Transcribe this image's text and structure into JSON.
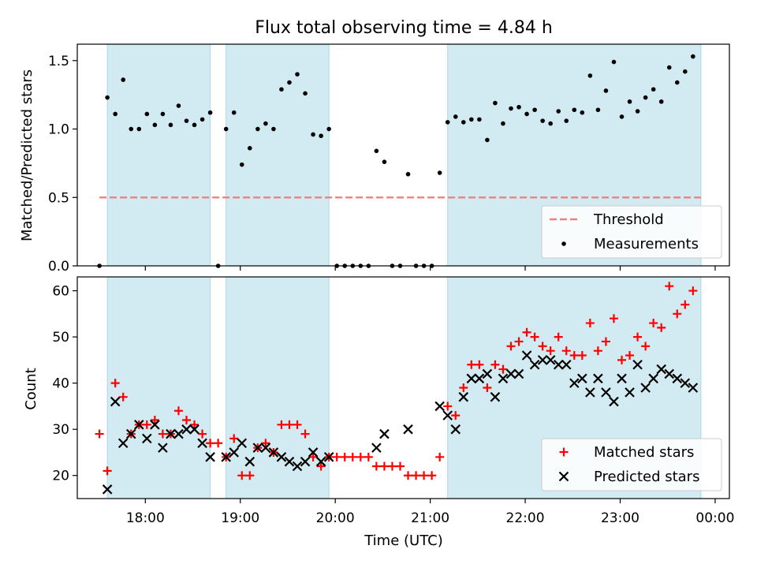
{
  "chart_data": [
    {
      "type": "scatter",
      "title": "Flux total observing time = 4.84 h",
      "ylabel": "Matched/Predicted stars",
      "xlabel": "",
      "xlim": [
        "17:17",
        "00:09"
      ],
      "ylim": [
        0,
        1.62
      ],
      "yticks": [
        0.0,
        0.5,
        1.0,
        1.5
      ],
      "ytick_labels": [
        "0.0",
        "0.5",
        "1.0",
        "1.5"
      ],
      "shaded_intervals": [
        [
          "17:36",
          "18:41"
        ],
        [
          "18:51",
          "19:56"
        ],
        [
          "21:11",
          "23:51"
        ]
      ],
      "threshold": {
        "name": "Threshold",
        "y": 0.5,
        "x_range": [
          "17:31",
          "23:51"
        ],
        "color": "#f08080"
      },
      "legend": {
        "placement": "lower-right",
        "entries": [
          "Threshold",
          "Measurements"
        ]
      },
      "series": [
        {
          "name": "Measurements",
          "color": "#000000",
          "marker": "dot",
          "points": [
            [
              "17:31",
              0
            ],
            [
              "17:36",
              1.23
            ],
            [
              "17:41",
              1.11
            ],
            [
              "17:46",
              1.36
            ],
            [
              "17:51",
              1.0
            ],
            [
              "17:56",
              1.0
            ],
            [
              "18:01",
              1.11
            ],
            [
              "18:06",
              1.03
            ],
            [
              "18:11",
              1.11
            ],
            [
              "18:16",
              1.03
            ],
            [
              "18:21",
              1.17
            ],
            [
              "18:26",
              1.06
            ],
            [
              "18:31",
              1.03
            ],
            [
              "18:36",
              1.07
            ],
            [
              "18:41",
              1.12
            ],
            [
              "18:46",
              0
            ],
            [
              "18:51",
              1.0
            ],
            [
              "18:56",
              1.12
            ],
            [
              "19:01",
              0.74
            ],
            [
              "19:06",
              0.86
            ],
            [
              "19:11",
              1.0
            ],
            [
              "19:16",
              1.04
            ],
            [
              "19:21",
              1.0
            ],
            [
              "19:26",
              1.29
            ],
            [
              "19:31",
              1.34
            ],
            [
              "19:36",
              1.4
            ],
            [
              "19:41",
              1.26
            ],
            [
              "19:46",
              0.96
            ],
            [
              "19:51",
              0.95
            ],
            [
              "19:56",
              1.0
            ],
            [
              "20:01",
              0
            ],
            [
              "20:06",
              0
            ],
            [
              "20:11",
              0
            ],
            [
              "20:16",
              0
            ],
            [
              "20:21",
              0
            ],
            [
              "20:26",
              0.84
            ],
            [
              "20:31",
              0.76
            ],
            [
              "20:36",
              0
            ],
            [
              "20:41",
              0
            ],
            [
              "20:46",
              0.67
            ],
            [
              "20:51",
              0
            ],
            [
              "20:56",
              0
            ],
            [
              "21:01",
              0
            ],
            [
              "21:06",
              0.68
            ],
            [
              "21:11",
              1.05
            ],
            [
              "21:16",
              1.09
            ],
            [
              "21:21",
              1.05
            ],
            [
              "21:26",
              1.07
            ],
            [
              "21:31",
              1.07
            ],
            [
              "21:36",
              0.92
            ],
            [
              "21:41",
              1.19
            ],
            [
              "21:46",
              1.04
            ],
            [
              "21:51",
              1.15
            ],
            [
              "21:56",
              1.16
            ],
            [
              "22:01",
              1.11
            ],
            [
              "22:06",
              1.14
            ],
            [
              "22:11",
              1.06
            ],
            [
              "22:16",
              1.04
            ],
            [
              "22:21",
              1.13
            ],
            [
              "22:26",
              1.06
            ],
            [
              "22:31",
              1.14
            ],
            [
              "22:36",
              1.12
            ],
            [
              "22:41",
              1.39
            ],
            [
              "22:46",
              1.14
            ],
            [
              "22:51",
              1.28
            ],
            [
              "22:56",
              1.49
            ],
            [
              "23:01",
              1.09
            ],
            [
              "23:06",
              1.2
            ],
            [
              "23:11",
              1.13
            ],
            [
              "23:16",
              1.23
            ],
            [
              "23:21",
              1.29
            ],
            [
              "23:26",
              1.2
            ],
            [
              "23:31",
              1.45
            ],
            [
              "23:36",
              1.34
            ],
            [
              "23:41",
              1.42
            ],
            [
              "23:46",
              1.53
            ]
          ]
        }
      ]
    },
    {
      "type": "scatter",
      "title": "",
      "xlabel": "Time (UTC)",
      "ylabel": "Count",
      "xlim": [
        "17:17",
        "00:09"
      ],
      "ylim": [
        15,
        63
      ],
      "yticks": [
        20,
        30,
        40,
        50,
        60
      ],
      "ytick_labels": [
        "20",
        "30",
        "40",
        "50",
        "60"
      ],
      "xticks": [
        "18:00",
        "19:00",
        "20:00",
        "21:00",
        "22:00",
        "23:00",
        "00:00"
      ],
      "shaded_intervals": [
        [
          "17:36",
          "18:41"
        ],
        [
          "18:51",
          "19:56"
        ],
        [
          "21:11",
          "23:51"
        ]
      ],
      "legend": {
        "placement": "lower-right",
        "entries": [
          "Matched stars",
          "Predicted stars"
        ]
      },
      "series": [
        {
          "name": "Matched stars",
          "color": "#ff0000",
          "marker": "plus",
          "points": [
            [
              "17:31",
              29
            ],
            [
              "17:36",
              21
            ],
            [
              "17:41",
              40
            ],
            [
              "17:46",
              37
            ],
            [
              "17:51",
              29
            ],
            [
              "17:56",
              31
            ],
            [
              "18:01",
              31
            ],
            [
              "18:06",
              32
            ],
            [
              "18:11",
              29
            ],
            [
              "18:16",
              29
            ],
            [
              "18:21",
              34
            ],
            [
              "18:26",
              32
            ],
            [
              "18:31",
              31
            ],
            [
              "18:36",
              29
            ],
            [
              "18:41",
              27
            ],
            [
              "18:46",
              27
            ],
            [
              "18:51",
              24
            ],
            [
              "18:56",
              28
            ],
            [
              "19:01",
              20
            ],
            [
              "19:06",
              20
            ],
            [
              "19:11",
              26
            ],
            [
              "19:16",
              27
            ],
            [
              "19:21",
              25
            ],
            [
              "19:26",
              31
            ],
            [
              "19:31",
              31
            ],
            [
              "19:36",
              31
            ],
            [
              "19:41",
              29
            ],
            [
              "19:46",
              24
            ],
            [
              "19:51",
              22
            ],
            [
              "19:56",
              24
            ],
            [
              "20:01",
              24
            ],
            [
              "20:06",
              24
            ],
            [
              "20:11",
              24
            ],
            [
              "20:16",
              24
            ],
            [
              "20:21",
              24
            ],
            [
              "20:26",
              22
            ],
            [
              "20:31",
              22
            ],
            [
              "20:36",
              22
            ],
            [
              "20:41",
              22
            ],
            [
              "20:46",
              20
            ],
            [
              "20:51",
              20
            ],
            [
              "20:56",
              20
            ],
            [
              "21:01",
              20
            ],
            [
              "21:06",
              24
            ],
            [
              "21:11",
              35
            ],
            [
              "21:16",
              33
            ],
            [
              "21:21",
              39
            ],
            [
              "21:26",
              44
            ],
            [
              "21:31",
              44
            ],
            [
              "21:36",
              39
            ],
            [
              "21:41",
              44
            ],
            [
              "21:46",
              43
            ],
            [
              "21:51",
              48
            ],
            [
              "21:56",
              49
            ],
            [
              "22:01",
              51
            ],
            [
              "22:06",
              50
            ],
            [
              "22:11",
              48
            ],
            [
              "22:16",
              47
            ],
            [
              "22:21",
              50
            ],
            [
              "22:26",
              47
            ],
            [
              "22:31",
              46
            ],
            [
              "22:36",
              46
            ],
            [
              "22:41",
              53
            ],
            [
              "22:46",
              47
            ],
            [
              "22:51",
              49
            ],
            [
              "22:56",
              54
            ],
            [
              "23:01",
              45
            ],
            [
              "23:06",
              46
            ],
            [
              "23:11",
              50
            ],
            [
              "23:16",
              48
            ],
            [
              "23:21",
              53
            ],
            [
              "23:26",
              52
            ],
            [
              "23:31",
              61
            ],
            [
              "23:36",
              55
            ],
            [
              "23:41",
              57
            ],
            [
              "23:46",
              60
            ]
          ]
        },
        {
          "name": "Predicted stars",
          "color": "#000000",
          "marker": "x",
          "points": [
            [
              "17:36",
              17
            ],
            [
              "17:41",
              36
            ],
            [
              "17:46",
              27
            ],
            [
              "17:51",
              29
            ],
            [
              "17:56",
              31
            ],
            [
              "18:01",
              28
            ],
            [
              "18:06",
              31
            ],
            [
              "18:11",
              26
            ],
            [
              "18:16",
              29
            ],
            [
              "18:21",
              29
            ],
            [
              "18:26",
              30
            ],
            [
              "18:31",
              30
            ],
            [
              "18:36",
              27
            ],
            [
              "18:41",
              24
            ],
            [
              "18:51",
              24
            ],
            [
              "18:56",
              25
            ],
            [
              "19:01",
              27
            ],
            [
              "19:06",
              23
            ],
            [
              "19:11",
              26
            ],
            [
              "19:16",
              26
            ],
            [
              "19:21",
              25
            ],
            [
              "19:26",
              24
            ],
            [
              "19:31",
              23
            ],
            [
              "19:36",
              22
            ],
            [
              "19:41",
              23
            ],
            [
              "19:46",
              25
            ],
            [
              "19:51",
              23
            ],
            [
              "19:56",
              24
            ],
            [
              "20:26",
              26
            ],
            [
              "20:31",
              29
            ],
            [
              "20:46",
              30
            ],
            [
              "21:06",
              35
            ],
            [
              "21:11",
              33
            ],
            [
              "21:16",
              30
            ],
            [
              "21:21",
              37
            ],
            [
              "21:26",
              41
            ],
            [
              "21:31",
              41
            ],
            [
              "21:36",
              42
            ],
            [
              "21:41",
              37
            ],
            [
              "21:46",
              41
            ],
            [
              "21:51",
              42
            ],
            [
              "21:56",
              42
            ],
            [
              "22:01",
              46
            ],
            [
              "22:06",
              44
            ],
            [
              "22:11",
              45
            ],
            [
              "22:16",
              45
            ],
            [
              "22:21",
              44
            ],
            [
              "22:26",
              44
            ],
            [
              "22:31",
              40
            ],
            [
              "22:36",
              41
            ],
            [
              "22:41",
              38
            ],
            [
              "22:46",
              41
            ],
            [
              "22:51",
              38
            ],
            [
              "22:56",
              36
            ],
            [
              "23:01",
              41
            ],
            [
              "23:06",
              38
            ],
            [
              "23:11",
              44
            ],
            [
              "23:16",
              39
            ],
            [
              "23:21",
              41
            ],
            [
              "23:26",
              43
            ],
            [
              "23:31",
              42
            ],
            [
              "23:36",
              41
            ],
            [
              "23:41",
              40
            ],
            [
              "23:46",
              39
            ]
          ]
        }
      ]
    }
  ],
  "colors": {
    "shade": "#add8e6",
    "threshold": "#f08080",
    "matched": "#ff0000",
    "predicted": "#000000"
  }
}
